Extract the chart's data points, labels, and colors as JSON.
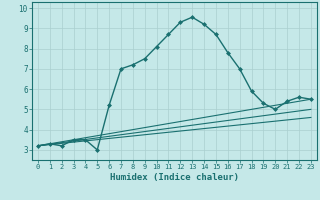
{
  "title": "",
  "xlabel": "Humidex (Indice chaleur)",
  "ylabel": "",
  "background_color": "#c5e8e8",
  "grid_color": "#aacfcf",
  "line_color": "#1a7070",
  "xlim": [
    -0.5,
    23.5
  ],
  "ylim": [
    2.5,
    10.3
  ],
  "xticks": [
    0,
    1,
    2,
    3,
    4,
    5,
    6,
    7,
    8,
    9,
    10,
    11,
    12,
    13,
    14,
    15,
    16,
    17,
    18,
    19,
    20,
    21,
    22,
    23
  ],
  "yticks": [
    3,
    4,
    5,
    6,
    7,
    8,
    9,
    10
  ],
  "series1_x": [
    0,
    1,
    2,
    3,
    4,
    5,
    6,
    7,
    8,
    9,
    10,
    11,
    12,
    13,
    14,
    15,
    16,
    17,
    18,
    19,
    20,
    21,
    22,
    23
  ],
  "series1_y": [
    3.2,
    3.3,
    3.2,
    3.5,
    3.5,
    3.0,
    5.2,
    7.0,
    7.2,
    7.5,
    8.1,
    8.7,
    9.3,
    9.55,
    9.2,
    8.7,
    7.8,
    7.0,
    5.9,
    5.3,
    5.0,
    5.4,
    5.6,
    5.5
  ],
  "series2_x": [
    0,
    23
  ],
  "series2_y": [
    3.2,
    5.5
  ],
  "series3_x": [
    0,
    23
  ],
  "series3_y": [
    3.2,
    5.0
  ],
  "series4_x": [
    0,
    23
  ],
  "series4_y": [
    3.2,
    4.6
  ]
}
